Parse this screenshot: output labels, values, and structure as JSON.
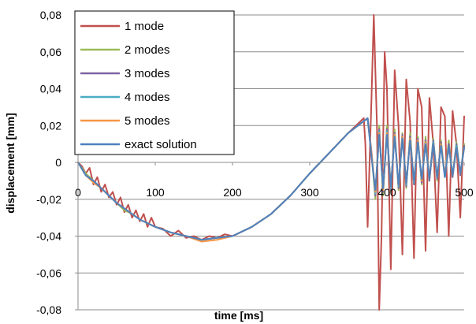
{
  "chart_data": {
    "type": "line",
    "xlabel": "time [ms]",
    "ylabel": "displacement [mm]",
    "xlim": [
      0,
      500
    ],
    "ylim": [
      -0.08,
      0.08
    ],
    "xticks": [
      0,
      100,
      200,
      300,
      400,
      500
    ],
    "xtick_labels": [
      "0",
      "100",
      "200",
      "300",
      "400",
      "500"
    ],
    "yticks": [
      0.08,
      0.06,
      0.04,
      0.02,
      0,
      -0.02,
      -0.04,
      -0.06,
      -0.08
    ],
    "ytick_labels": [
      "0,08",
      "0,06",
      "0,04",
      "0,02",
      "0",
      "-0,02",
      "-0,04",
      "-0,06",
      "-0,08"
    ],
    "grid": "horizontal",
    "legend_position": "top-left",
    "series": [
      {
        "name": "1 mode",
        "color": "#C0504D",
        "x": [
          0,
          5,
          10,
          15,
          20,
          25,
          30,
          35,
          40,
          45,
          50,
          55,
          60,
          65,
          70,
          75,
          80,
          85,
          90,
          95,
          100,
          110,
          120,
          130,
          140,
          150,
          160,
          170,
          180,
          190,
          200,
          225,
          250,
          275,
          300,
          325,
          350,
          370,
          372,
          375,
          380,
          383,
          387,
          390,
          393,
          397,
          400,
          405,
          410,
          415,
          420,
          425,
          430,
          435,
          440,
          445,
          450,
          455,
          460,
          465,
          470,
          475,
          480,
          485,
          490,
          495,
          500
        ],
        "y": [
          0,
          -0.002,
          -0.006,
          -0.003,
          -0.012,
          -0.008,
          -0.016,
          -0.012,
          -0.019,
          -0.016,
          -0.023,
          -0.019,
          -0.027,
          -0.023,
          -0.03,
          -0.026,
          -0.032,
          -0.028,
          -0.035,
          -0.03,
          -0.035,
          -0.036,
          -0.04,
          -0.037,
          -0.041,
          -0.04,
          -0.042,
          -0.04,
          -0.041,
          -0.039,
          -0.04,
          -0.035,
          -0.028,
          -0.018,
          -0.006,
          0.005,
          0.016,
          0.024,
          0.01,
          -0.035,
          0.035,
          0.08,
          0.02,
          -0.08,
          -0.04,
          0.06,
          0.04,
          -0.058,
          0.05,
          0.02,
          -0.05,
          0.045,
          0.022,
          -0.052,
          0.04,
          0.03,
          -0.048,
          0.035,
          0.01,
          -0.038,
          0.03,
          0.025,
          -0.04,
          0.028,
          0.01,
          -0.03,
          0.025
        ]
      },
      {
        "name": "2 modes",
        "color": "#9BBB59",
        "x": [
          0,
          10,
          20,
          30,
          40,
          50,
          60,
          70,
          80,
          90,
          100,
          120,
          140,
          160,
          180,
          200,
          225,
          250,
          275,
          300,
          325,
          350,
          375,
          380,
          385,
          390,
          395,
          400,
          405,
          410,
          415,
          420,
          425,
          430,
          435,
          440,
          445,
          450,
          455,
          460,
          465,
          470,
          475,
          480,
          485,
          490,
          495,
          500
        ],
        "y": [
          0,
          -0.006,
          -0.01,
          -0.014,
          -0.018,
          -0.022,
          -0.026,
          -0.028,
          -0.031,
          -0.033,
          -0.035,
          -0.038,
          -0.04,
          -0.042,
          -0.041,
          -0.04,
          -0.035,
          -0.028,
          -0.018,
          -0.006,
          0.005,
          0.016,
          0.024,
          0.005,
          -0.02,
          0.02,
          -0.018,
          0.02,
          -0.016,
          0.018,
          -0.015,
          0.016,
          -0.014,
          0.016,
          -0.012,
          0.014,
          -0.012,
          0.014,
          -0.01,
          0.013,
          -0.01,
          0.012,
          -0.008,
          0.012,
          -0.008,
          0.011,
          -0.007,
          0.01
        ]
      },
      {
        "name": "3 modes",
        "color": "#8064A2",
        "x": [
          0,
          10,
          20,
          30,
          40,
          50,
          60,
          70,
          80,
          90,
          100,
          120,
          140,
          160,
          180,
          200,
          225,
          250,
          275,
          300,
          325,
          350,
          375,
          380,
          385,
          390,
          395,
          400,
          405,
          410,
          415,
          420,
          425,
          430,
          435,
          440,
          445,
          450,
          455,
          460,
          465,
          470,
          475,
          480,
          485,
          490,
          495,
          500
        ],
        "y": [
          0,
          -0.007,
          -0.01,
          -0.014,
          -0.018,
          -0.022,
          -0.025,
          -0.028,
          -0.031,
          -0.033,
          -0.035,
          -0.038,
          -0.04,
          -0.042,
          -0.041,
          -0.04,
          -0.035,
          -0.028,
          -0.018,
          -0.006,
          0.005,
          0.016,
          0.024,
          0.006,
          -0.018,
          0.018,
          -0.016,
          0.018,
          -0.015,
          0.016,
          -0.014,
          0.015,
          -0.013,
          0.014,
          -0.012,
          0.013,
          -0.011,
          0.012,
          -0.01,
          0.012,
          -0.009,
          0.011,
          -0.008,
          0.01,
          -0.008,
          0.01,
          -0.007,
          0.009
        ]
      },
      {
        "name": "4 modes",
        "color": "#4BACC6",
        "x": [
          0,
          10,
          20,
          30,
          40,
          50,
          60,
          70,
          80,
          90,
          100,
          120,
          140,
          160,
          180,
          200,
          225,
          250,
          275,
          300,
          325,
          350,
          375,
          380,
          385,
          390,
          395,
          400,
          405,
          410,
          415,
          420,
          425,
          430,
          435,
          440,
          445,
          450,
          455,
          460,
          465,
          470,
          475,
          480,
          485,
          490,
          495,
          500
        ],
        "y": [
          0,
          -0.007,
          -0.01,
          -0.014,
          -0.018,
          -0.022,
          -0.025,
          -0.028,
          -0.031,
          -0.033,
          -0.035,
          -0.038,
          -0.04,
          -0.042,
          -0.041,
          -0.04,
          -0.035,
          -0.028,
          -0.018,
          -0.006,
          0.005,
          0.016,
          0.024,
          0.004,
          -0.017,
          0.017,
          -0.015,
          0.017,
          -0.014,
          0.015,
          -0.013,
          0.014,
          -0.012,
          0.013,
          -0.011,
          0.012,
          -0.01,
          0.011,
          -0.009,
          0.011,
          -0.008,
          0.01,
          -0.008,
          0.009,
          -0.007,
          0.009,
          -0.006,
          0.008
        ]
      },
      {
        "name": "5 modes",
        "color": "#F79646",
        "x": [
          0,
          10,
          20,
          30,
          40,
          50,
          60,
          70,
          80,
          90,
          100,
          120,
          140,
          160,
          180,
          200,
          225,
          250,
          275,
          300,
          325,
          350,
          375,
          380,
          385,
          390,
          395,
          400,
          405,
          410,
          415,
          420,
          425,
          430,
          435,
          440,
          445,
          450,
          455,
          460,
          465,
          470,
          475,
          480,
          485,
          490,
          495,
          500
        ],
        "y": [
          0,
          -0.007,
          -0.011,
          -0.014,
          -0.018,
          -0.022,
          -0.025,
          -0.028,
          -0.031,
          -0.033,
          -0.035,
          -0.038,
          -0.04,
          -0.043,
          -0.042,
          -0.04,
          -0.035,
          -0.028,
          -0.018,
          -0.006,
          0.005,
          0.016,
          0.024,
          0.005,
          -0.016,
          0.016,
          -0.015,
          0.016,
          -0.013,
          0.015,
          -0.012,
          0.014,
          -0.011,
          0.013,
          -0.01,
          0.012,
          -0.01,
          0.011,
          -0.009,
          0.01,
          -0.008,
          0.01,
          -0.007,
          0.009,
          -0.007,
          0.008,
          -0.006,
          0.008
        ]
      },
      {
        "name": "exact solution",
        "color": "#4F81BD",
        "x": [
          0,
          10,
          20,
          30,
          40,
          50,
          60,
          70,
          80,
          90,
          100,
          120,
          140,
          160,
          180,
          200,
          225,
          250,
          275,
          300,
          325,
          350,
          375,
          380,
          385,
          390,
          395,
          400,
          405,
          410,
          415,
          420,
          425,
          430,
          435,
          440,
          445,
          450,
          455,
          460,
          465,
          470,
          475,
          480,
          485,
          490,
          495,
          500
        ],
        "y": [
          0,
          -0.007,
          -0.01,
          -0.014,
          -0.018,
          -0.022,
          -0.025,
          -0.028,
          -0.031,
          -0.033,
          -0.035,
          -0.038,
          -0.04,
          -0.042,
          -0.041,
          -0.04,
          -0.035,
          -0.028,
          -0.018,
          -0.006,
          0.005,
          0.016,
          0.024,
          0.003,
          -0.015,
          0.015,
          -0.014,
          0.015,
          -0.013,
          0.014,
          -0.012,
          0.013,
          -0.011,
          0.012,
          -0.01,
          0.011,
          -0.009,
          0.01,
          -0.009,
          0.01,
          -0.008,
          0.009,
          -0.008,
          0.009,
          -0.007,
          0.008,
          -0.006,
          0.008
        ]
      }
    ]
  }
}
